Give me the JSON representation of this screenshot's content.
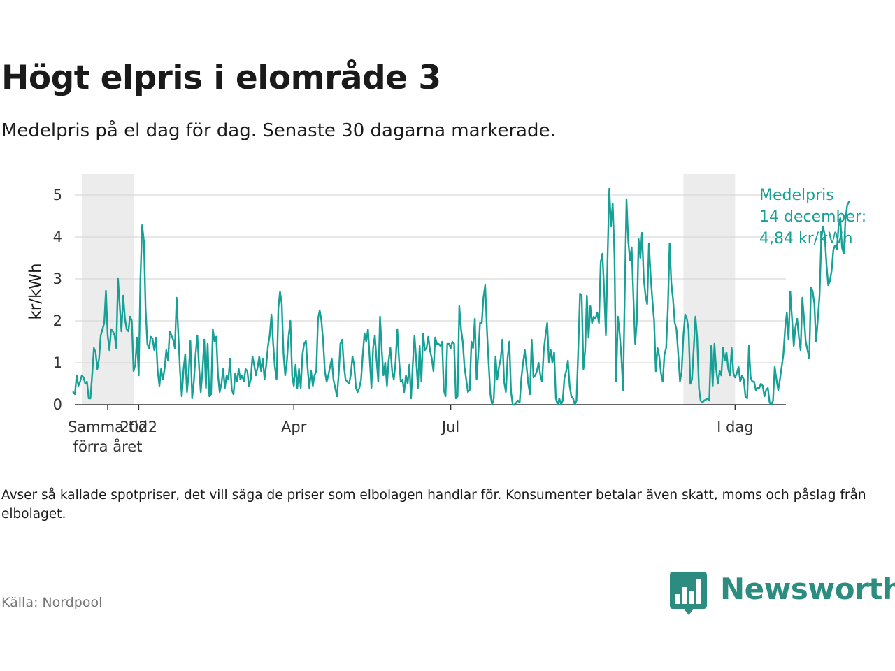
{
  "title": "Högt elpris i elområde 3",
  "subtitle": "Medelpris på el dag för dag.  Senaste 30 dagarna markerade.",
  "note": "Avser så kallade spotpriser, det vill säga de priser som elbolagen handlar för. Konsumenter betalar även skatt, moms och påslag från elbolaget.",
  "source": "Källa: Nordpool",
  "brand": {
    "name": "Newsworthy",
    "logo_icon": "bar-chart-speech-bubble-icon",
    "color": "#2d8c80"
  },
  "chart_data": {
    "type": "line",
    "title": "Högt elpris i elområde 3",
    "ylabel": "kr/kWh",
    "xlabel": "",
    "ylim": [
      0,
      5.5
    ],
    "yticks": [
      0,
      1,
      2,
      3,
      4,
      5
    ],
    "day_range": [
      0,
      374
    ],
    "xticks": [
      {
        "day": 0,
        "label": "Samma tid\nförra året"
      },
      {
        "day": 18,
        "label": "2022"
      },
      {
        "day": 108,
        "label": "Apr"
      },
      {
        "day": 199,
        "label": "Jul"
      },
      {
        "day": 364,
        "label": "I dag"
      }
    ],
    "highlight_periods": [
      {
        "start_day": -15,
        "end_day": 15,
        "label": "Samma tid förra året (30 dagar)"
      },
      {
        "start_day": 334,
        "end_day": 364,
        "label": "Senaste 30 dagarna"
      }
    ],
    "series": [
      {
        "name": "Medelpris",
        "color": "#16a096",
        "start_day": -20,
        "values": [
          0.3,
          0.25,
          0.7,
          0.45,
          0.55,
          0.7,
          0.65,
          0.5,
          0.55,
          0.15,
          0.15,
          0.7,
          1.35,
          1.25,
          0.85,
          1.1,
          1.65,
          1.8,
          1.95,
          2.72,
          1.65,
          1.3,
          1.8,
          1.75,
          1.65,
          1.35,
          3.0,
          2.35,
          1.75,
          2.6,
          2.05,
          1.8,
          1.75,
          2.1,
          2.0,
          0.8,
          0.95,
          1.6,
          0.7,
          3.0,
          4.28,
          3.9,
          2.3,
          1.45,
          1.35,
          1.62,
          1.58,
          1.3,
          1.6,
          0.8,
          0.45,
          0.85,
          0.6,
          0.85,
          1.3,
          1.05,
          1.75,
          1.65,
          1.55,
          1.35,
          2.55,
          1.65,
          0.8,
          0.2,
          0.85,
          1.2,
          0.3,
          0.75,
          1.52,
          0.15,
          0.55,
          1.2,
          1.65,
          0.9,
          0.3,
          0.8,
          1.55,
          0.4,
          1.45,
          0.2,
          0.25,
          1.8,
          1.5,
          1.62,
          0.7,
          0.3,
          0.5,
          0.85,
          0.4,
          0.7,
          0.6,
          1.1,
          0.35,
          0.25,
          0.75,
          0.55,
          0.85,
          0.6,
          0.7,
          0.55,
          0.85,
          0.8,
          0.45,
          0.6,
          1.15,
          0.95,
          0.7,
          0.9,
          1.15,
          0.8,
          1.1,
          0.6,
          0.95,
          1.4,
          1.65,
          2.15,
          1.45,
          0.9,
          0.6,
          2.3,
          2.7,
          2.4,
          1.2,
          0.7,
          1.05,
          1.65,
          2.0,
          0.7,
          0.45,
          0.95,
          0.4,
          0.85,
          0.4,
          1.2,
          1.45,
          1.52,
          0.85,
          0.4,
          0.8,
          0.45,
          0.7,
          0.8,
          2.05,
          2.25,
          2.0,
          1.5,
          0.8,
          0.55,
          0.7,
          0.9,
          1.1,
          0.6,
          0.4,
          0.2,
          0.7,
          1.45,
          1.55,
          0.95,
          0.6,
          0.55,
          0.5,
          0.7,
          1.15,
          0.95,
          0.4,
          0.3,
          0.4,
          0.6,
          1.2,
          1.7,
          1.5,
          1.8,
          1.1,
          0.4,
          1.35,
          1.65,
          1.05,
          0.55,
          2.1,
          1.3,
          0.7,
          1.0,
          0.45,
          1.05,
          1.35,
          0.8,
          0.6,
          1.0,
          1.8,
          1.1,
          0.55,
          0.6,
          0.3,
          0.7,
          0.5,
          0.95,
          0.15,
          0.95,
          1.65,
          1.05,
          0.4,
          1.4,
          0.55,
          1.7,
          1.3,
          1.35,
          1.62,
          1.3,
          1.1,
          0.8,
          1.6,
          1.45,
          1.45,
          1.4,
          1.5,
          0.35,
          0.2,
          1.45,
          1.45,
          1.35,
          1.5,
          1.45,
          0.15,
          0.2,
          2.35,
          1.8,
          1.5,
          0.9,
          0.6,
          0.3,
          0.35,
          1.5,
          1.35,
          2.05,
          0.6,
          1.2,
          1.95,
          1.95,
          2.55,
          2.85,
          1.8,
          1.0,
          0.25,
          0.0,
          0.15,
          1.15,
          0.6,
          0.9,
          1.1,
          1.55,
          0.55,
          0.3,
          1.1,
          1.5,
          0.3,
          0.0,
          0.0,
          0.05,
          0.1,
          0.05,
          0.65,
          1.0,
          1.3,
          0.9,
          0.5,
          0.25,
          1.55,
          0.65,
          0.7,
          0.8,
          1.0,
          0.7,
          0.55,
          1.3,
          1.65,
          1.95,
          1.0,
          1.3,
          1.0,
          1.25,
          0.15,
          0.0,
          0.15,
          0.0,
          0.1,
          0.65,
          0.8,
          1.05,
          0.45,
          0.2,
          0.15,
          0.0,
          0.1,
          1.3,
          2.65,
          2.6,
          0.85,
          1.3,
          2.6,
          1.6,
          2.35,
          1.95,
          2.1,
          2.05,
          2.2,
          1.95,
          3.4,
          3.6,
          2.75,
          1.65,
          3.5,
          5.15,
          4.25,
          4.8,
          3.55,
          0.55,
          2.1,
          1.7,
          1.15,
          0.35,
          2.75,
          4.9,
          3.9,
          3.45,
          3.75,
          2.55,
          1.45,
          2.0,
          3.95,
          3.5,
          4.1,
          3.0,
          2.6,
          2.4,
          3.85,
          3.05,
          2.5,
          2.0,
          0.8,
          1.35,
          1.15,
          0.75,
          0.55,
          1.2,
          1.35,
          2.3,
          3.85,
          2.9,
          2.5,
          1.95,
          1.8,
          1.2,
          0.55,
          0.8,
          1.65,
          2.15,
          2.05,
          1.8,
          0.5,
          0.6,
          1.35,
          2.1,
          1.6,
          0.4,
          0.1,
          0.05,
          0.1,
          0.12,
          0.15,
          0.1,
          1.4,
          0.45,
          1.45,
          0.85,
          0.5,
          0.8,
          0.7,
          1.35,
          1.05,
          1.25,
          0.85,
          0.7,
          1.35,
          0.75,
          0.65,
          0.75,
          0.9,
          0.55,
          0.7,
          0.6,
          0.2,
          0.15,
          1.4,
          0.65,
          0.55,
          0.55,
          0.35,
          0.4,
          0.4,
          0.5,
          0.45,
          0.2,
          0.35,
          0.4,
          0.05,
          0.0,
          0.1,
          0.9,
          0.6,
          0.35,
          0.6,
          0.9,
          1.2,
          1.8,
          2.2,
          1.55,
          2.7,
          2.05,
          1.4,
          1.85,
          2.05,
          1.6,
          1.3,
          2.55,
          2.05,
          1.5,
          1.3,
          1.1,
          2.8,
          2.7,
          2.4,
          1.5,
          2.05,
          2.6,
          3.95,
          4.25,
          4.05,
          3.35,
          2.85,
          2.95,
          3.2,
          3.7,
          3.8,
          3.7,
          4.25,
          4.45,
          3.75,
          3.6,
          4.4,
          4.75,
          4.84
        ]
      }
    ],
    "annotation": {
      "lines": [
        "Medelpris",
        "14 december:",
        "4,84 kr/kWh"
      ]
    }
  }
}
